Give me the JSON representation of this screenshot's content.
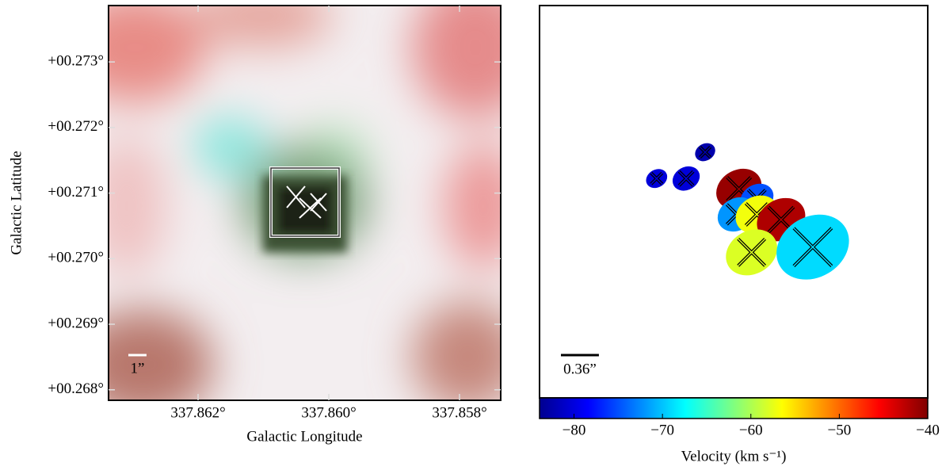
{
  "chart_data": [
    {
      "type": "image",
      "xlabel": "Galactic Longitude",
      "ylabel": "Galactic Latitude",
      "xlim": [
        337.86337,
        337.85737
      ],
      "ylim": [
        0.26784,
        0.27386
      ],
      "xticks": [
        {
          "value": 337.862,
          "label": "337.862°"
        },
        {
          "value": 337.86,
          "label": "337.860°"
        },
        {
          "value": 337.858,
          "label": "337.858°"
        }
      ],
      "yticks": [
        {
          "value": 0.268,
          "label": "+00.268°"
        },
        {
          "value": 0.269,
          "label": "+00.269°"
        },
        {
          "value": 0.27,
          "label": "+00.270°"
        },
        {
          "value": 0.271,
          "label": "+00.271°"
        },
        {
          "value": 0.272,
          "label": "+00.272°"
        },
        {
          "value": 0.273,
          "label": "+00.273°"
        }
      ],
      "scalebar": {
        "value": 1,
        "label": "1”"
      }
    },
    {
      "type": "ellipses",
      "x": [
        1.57,
        1.11,
        1.39,
        1.89,
        2.06,
        1.87,
        2.06,
        2.29,
        2.01,
        2.59
      ],
      "y": [
        2.33,
        2.08,
        2.08,
        1.98,
        1.89,
        1.74,
        1.74,
        1.69,
        1.38,
        1.43
      ],
      "sizes": [
        0.2,
        0.21,
        0.27,
        0.45,
        0.33,
        0.38,
        0.42,
        0.48,
        0.51,
        0.72
      ],
      "values": [
        -82,
        -80,
        -80,
        -41,
        -75,
        -72,
        -57,
        -42,
        -58,
        -69
      ],
      "xlim": [
        0,
        3.68
      ],
      "ylim": [
        0,
        3.72
      ],
      "scalebar": {
        "value": 0.36,
        "label": "0.36”"
      },
      "colorbar": {
        "label": "Velocity (km s⁻¹)",
        "lim": [
          -83.9,
          -40
        ],
        "ticks": [
          {
            "value": -80,
            "label": "−80"
          },
          {
            "value": -70,
            "label": "−70"
          },
          {
            "value": -60,
            "label": "−60"
          },
          {
            "value": -50,
            "label": "−50"
          },
          {
            "value": -40,
            "label": "−40"
          }
        ]
      }
    }
  ]
}
